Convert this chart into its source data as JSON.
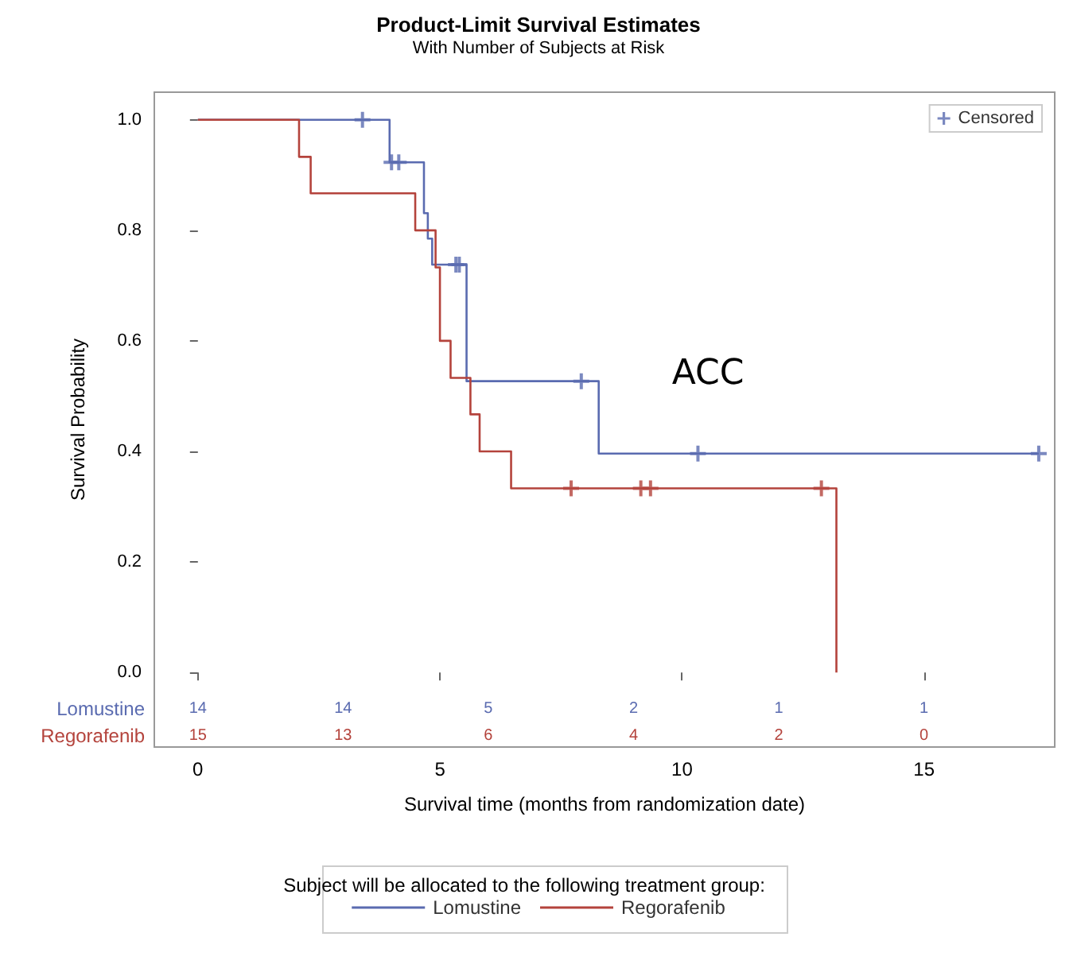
{
  "chart_data": {
    "type": "step",
    "title": "Product-Limit Survival Estimates",
    "subtitle": "With Number of Subjects at Risk",
    "xlabel": "Survival time (months from randomization date)",
    "ylabel": "Survival Probability",
    "legend_title": "Subject will be allocated to the following treatment group:",
    "xlim": [
      -0.9,
      17.7
    ],
    "xticks": [
      0,
      5,
      10,
      15
    ],
    "ylim": [
      -0.135,
      1.05
    ],
    "yticks": [
      {
        "value": 0,
        "label": "0.0"
      },
      {
        "value": 0.2,
        "label": "0.2"
      },
      {
        "value": 0.4,
        "label": "0.4"
      },
      {
        "value": 0.6,
        "label": "0.6"
      },
      {
        "value": 0.8,
        "label": "0.8"
      },
      {
        "value": 1,
        "label": "1.0"
      }
    ],
    "grid": false,
    "legend": "bottom",
    "line_style": "solid",
    "marker": "none",
    "series": [
      {
        "name": "Lomustine",
        "color": "#5a6bb0",
        "x": [
          0,
          3.96,
          4.67,
          4.75,
          4.84,
          5.55,
          8.28,
          17.37
        ],
        "values": [
          1,
          0.923,
          0.831,
          0.785,
          0.738,
          0.527,
          0.396,
          0.396
        ]
      },
      {
        "name": "Regorafenib",
        "color": "#b4433c",
        "x": [
          0,
          2.09,
          2.33,
          4.49,
          4.91,
          5.0,
          5.22,
          5.63,
          5.82,
          6.47,
          13.19
        ],
        "values": [
          1,
          0.933,
          0.867,
          0.8,
          0.733,
          0.6,
          0.533,
          0.467,
          0.4,
          0.333,
          0
        ]
      },
      {
        "name": "Censored",
        "type": "scatter",
        "marker": "cross",
        "colors": [
          "#5a6bb0",
          "#5a6bb0",
          "#5a6bb0",
          "#5a6bb0",
          "#5a6bb0",
          "#5a6bb0",
          "#5a6bb0",
          "#5a6bb0",
          "#b4433c",
          "#b4433c",
          "#b4433c",
          "#b4433c"
        ],
        "x": [
          3.4,
          4.0,
          4.15,
          5.33,
          5.4,
          7.92,
          10.33,
          17.37,
          7.71,
          9.15,
          9.35,
          12.88
        ],
        "values": [
          1,
          0.923,
          0.923,
          0.738,
          0.738,
          0.527,
          0.396,
          0.396,
          0.333,
          0.333,
          0.333,
          0.333
        ]
      }
    ],
    "annotations": [
      "ACC",
      "Lomustine",
      "14",
      "14",
      "5",
      "2",
      "1",
      "1",
      "Regorafenib",
      "15",
      "13",
      "6",
      "4",
      "2",
      "0"
    ]
  }
}
